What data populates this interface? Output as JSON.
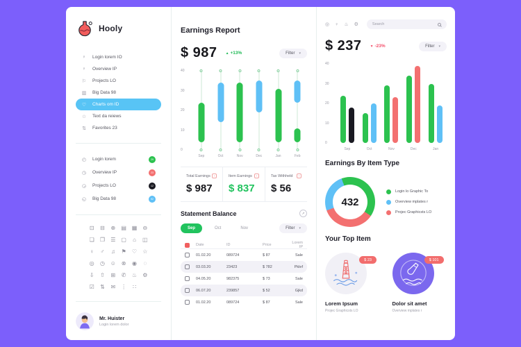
{
  "brand": {
    "name": "Hooly"
  },
  "colors": {
    "green": "#2cc24f",
    "blue": "#5fc0f6",
    "red": "#f37070",
    "black": "#1a1a22",
    "purple_bg": "#7c5ffb",
    "active_pill": "#58c4f5",
    "green_text": "#1db954",
    "red_text": "#f4516c",
    "tab_green": "#21c35e",
    "badge_red": "#f26d6d"
  },
  "sidebar": {
    "menu": [
      {
        "icon": "user-icon",
        "glyph": "♀",
        "label": "Login lorem IO",
        "active": false
      },
      {
        "icon": "user-icon",
        "glyph": "♀",
        "label": "Overview IP",
        "active": false
      },
      {
        "icon": "projects-icon",
        "glyph": "⚐",
        "label": "Projects LO",
        "active": false
      },
      {
        "icon": "chart-icon",
        "glyph": "▥",
        "label": "Big Data 98",
        "active": false
      },
      {
        "icon": "heart-icon",
        "glyph": "♡",
        "label": "Charts om ID",
        "active": true
      },
      {
        "icon": "star-icon",
        "glyph": "☆",
        "label": "Text da reiews",
        "active": false
      },
      {
        "icon": "sliders-icon",
        "glyph": "⇅",
        "label": "Favorites 23",
        "active": false
      }
    ],
    "stats_menu": [
      {
        "icon": "clock-icon",
        "glyph": "◴",
        "label": "Login lorem",
        "badge": "29",
        "color": "green"
      },
      {
        "icon": "clock-icon",
        "glyph": "◷",
        "label": "Overview IP",
        "badge": "23",
        "color": "red"
      },
      {
        "icon": "clock-icon",
        "glyph": "◶",
        "label": "Projects LO",
        "badge": "12",
        "color": "black"
      },
      {
        "icon": "clock-icon",
        "glyph": "◵",
        "label": "Big Data 98",
        "badge": "92",
        "color": "blue"
      }
    ],
    "icon_grid": [
      {
        "name": "camera-icon",
        "glyph": "⊡"
      },
      {
        "name": "minus-square-icon",
        "glyph": "⊟"
      },
      {
        "name": "plus-circle-icon",
        "glyph": "⊕"
      },
      {
        "name": "calendar-icon",
        "glyph": "▤"
      },
      {
        "name": "image-icon",
        "glyph": "▦"
      },
      {
        "name": "minus-circle-icon",
        "glyph": "⊖"
      },
      {
        "name": "file-icon",
        "glyph": "❏"
      },
      {
        "name": "copy-icon",
        "glyph": "❐"
      },
      {
        "name": "list-icon",
        "glyph": "☰"
      },
      {
        "name": "folder-icon",
        "glyph": "▢"
      },
      {
        "name": "home-icon",
        "glyph": "⌂"
      },
      {
        "name": "briefcase-icon",
        "glyph": "◫"
      },
      {
        "name": "user-remove-icon",
        "glyph": "♀"
      },
      {
        "name": "user-icon",
        "glyph": "♂"
      },
      {
        "name": "music-icon",
        "glyph": "♫"
      },
      {
        "name": "flag-icon",
        "glyph": "⚑"
      },
      {
        "name": "heart-icon",
        "glyph": "♡"
      },
      {
        "name": "star-icon",
        "glyph": "☆"
      },
      {
        "name": "pin-icon",
        "glyph": "◎"
      },
      {
        "name": "clock-icon",
        "glyph": "◷"
      },
      {
        "name": "smiley-icon",
        "glyph": "☺"
      },
      {
        "name": "cancel-icon",
        "glyph": "⊗"
      },
      {
        "name": "globe-icon",
        "glyph": "◉"
      },
      {
        "name": "search-icon",
        "glyph": "◌"
      },
      {
        "name": "download-icon",
        "glyph": "⇩"
      },
      {
        "name": "upload-icon",
        "glyph": "⇧"
      },
      {
        "name": "printer-icon",
        "glyph": "⊞"
      },
      {
        "name": "phone-icon",
        "glyph": "✆"
      },
      {
        "name": "bell-icon",
        "glyph": "♨"
      },
      {
        "name": "gear-icon",
        "glyph": "⚙"
      },
      {
        "name": "check-square-icon",
        "glyph": "☑"
      },
      {
        "name": "sliders-icon",
        "glyph": "⇅"
      },
      {
        "name": "mail-icon",
        "glyph": "✉"
      },
      {
        "name": "more-vertical-icon",
        "glyph": "⋮"
      },
      {
        "name": "grid-icon",
        "glyph": "∷"
      }
    ],
    "profile": {
      "name": "Mr. Huister",
      "subtitle": "Login lorem dolor"
    }
  },
  "earnings": {
    "title": "Earnings Report",
    "amount": "$ 987",
    "change": "+13%",
    "filter_label": "Filter",
    "stats": [
      {
        "label": "Total Earnings",
        "value": "$ 987",
        "green": false
      },
      {
        "label": "Item Earnings",
        "value": "$ 837",
        "green": true
      },
      {
        "label": "Tax Withheld",
        "value": "$ 56",
        "green": false
      }
    ]
  },
  "statement": {
    "title": "Statement Balance",
    "tabs": [
      {
        "label": "Sep",
        "active": true
      },
      {
        "label": "Oct",
        "active": false
      },
      {
        "label": "Nov",
        "active": false
      }
    ],
    "filter_label": "Filter",
    "columns": [
      "Date",
      "ID",
      "Price",
      "Lorem IP"
    ],
    "rows": [
      {
        "date": "01.02.20",
        "id": "089724",
        "price": "$ 87",
        "status": "Sale",
        "striped": false
      },
      {
        "date": "03.03.20",
        "id": "23423",
        "price": "$ 782",
        "status": "Pklef",
        "striped": true
      },
      {
        "date": "04.05.20",
        "id": "982375",
        "price": "$ 73",
        "status": "Sale",
        "striped": false
      },
      {
        "date": "06.07.20",
        "id": "239857",
        "price": "$ 52",
        "status": "Gjkd",
        "striped": true
      },
      {
        "date": "01.02.20",
        "id": "089724",
        "price": "$ 87",
        "status": "Sale",
        "striped": false
      }
    ]
  },
  "right": {
    "toolbar_icons": [
      {
        "name": "pin-icon",
        "glyph": "◎"
      },
      {
        "name": "lightbulb-icon",
        "glyph": "♀"
      },
      {
        "name": "bell-icon",
        "glyph": "♨"
      },
      {
        "name": "gear-icon",
        "glyph": "⚙"
      }
    ],
    "search_placeholder": "Search",
    "amount": "$ 237",
    "change": "-23%",
    "filter_label": "Filter",
    "donut_title": "Earnings By Item Type",
    "donut_center": "432",
    "legend": [
      {
        "label": "Login lo Graphic To",
        "color": "green"
      },
      {
        "label": "Overview mplates r",
        "color": "blue"
      },
      {
        "label": "Projec Graphicsts LO",
        "color": "red"
      }
    ],
    "top_title": "Your Top Item",
    "top_items": [
      {
        "badge": "$ 23",
        "title": "Lorem Ipsum",
        "subtitle": "Projec Graphicsts LO",
        "style": "light"
      },
      {
        "badge": "$ 101",
        "title": "Dolor sit amet",
        "subtitle": "Overview mplates r",
        "style": "purple"
      }
    ]
  },
  "chart_data": [
    {
      "type": "candlestick",
      "title": "Earnings Report",
      "categories": [
        "Sep",
        "Oct",
        "Nov",
        "Dec",
        "Jan",
        "Feb"
      ],
      "ylim": [
        0,
        40
      ],
      "yticks": [
        40,
        30,
        20,
        10,
        0
      ],
      "columns": [
        {
          "category": "Sep",
          "segments": [
            {
              "low": 4,
              "high": 24,
              "color": "green"
            }
          ]
        },
        {
          "category": "Oct",
          "segments": [
            {
              "low": 14,
              "high": 34,
              "color": "blue"
            }
          ]
        },
        {
          "category": "Nov",
          "segments": [
            {
              "low": 4,
              "high": 34,
              "color": "green"
            }
          ]
        },
        {
          "category": "Dec",
          "segments": [
            {
              "low": 19,
              "high": 35,
              "color": "blue"
            }
          ]
        },
        {
          "category": "Jan",
          "segments": [
            {
              "low": 4,
              "high": 31,
              "color": "green"
            }
          ]
        },
        {
          "category": "Feb",
          "segments": [
            {
              "low": 24,
              "high": 35,
              "color": "blue"
            },
            {
              "low": 4,
              "high": 11,
              "color": "green"
            }
          ]
        }
      ]
    },
    {
      "type": "bar",
      "title": "Monthly comparison",
      "categories": [
        "Sep",
        "Oct",
        "Nov",
        "Dec",
        "Jan"
      ],
      "ylim": [
        0,
        40
      ],
      "yticks": [
        40,
        30,
        20,
        10,
        0
      ],
      "pairs": [
        {
          "category": "Sep",
          "values": [
            24,
            18
          ],
          "colors": [
            "green",
            "black"
          ]
        },
        {
          "category": "Oct",
          "values": [
            15,
            20
          ],
          "colors": [
            "green",
            "blue"
          ]
        },
        {
          "category": "Nov",
          "values": [
            29,
            23
          ],
          "colors": [
            "green",
            "red"
          ]
        },
        {
          "category": "Dec",
          "values": [
            34,
            39
          ],
          "colors": [
            "green",
            "red"
          ]
        },
        {
          "category": "Jan",
          "values": [
            30,
            19
          ],
          "colors": [
            "green",
            "blue"
          ]
        }
      ]
    },
    {
      "type": "donut",
      "title": "Earnings By Item Type",
      "center_value": "432",
      "start_deg": -20,
      "slices": [
        {
          "label": "Login lo Graphic To",
          "color": "green",
          "pct": 40
        },
        {
          "label": "Projec Graphicsts LO",
          "color": "red",
          "pct": 35
        },
        {
          "label": "Overview mplates r",
          "color": "blue",
          "pct": 25
        }
      ]
    }
  ]
}
